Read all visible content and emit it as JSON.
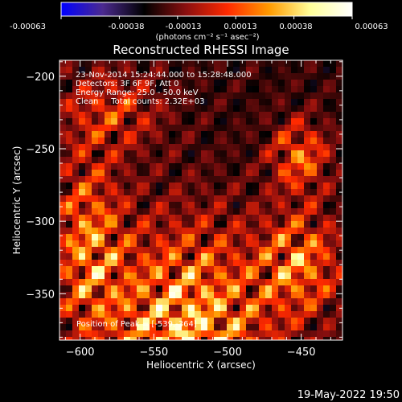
{
  "colorbar": {
    "ticks": [
      "-0.00063",
      "-0.00038",
      "-0.00013",
      "0.00013",
      "0.00038",
      "0.00063"
    ],
    "units_label": "(photons cm⁻² s⁻¹ asec⁻²)",
    "colormap": [
      "#0000ff",
      "#4b2a8f",
      "#000000",
      "#8a0f0f",
      "#ff2a00",
      "#ff9a00",
      "#ffff9a",
      "#ffffff"
    ]
  },
  "chart_data": {
    "type": "heatmap",
    "title": "Reconstructed RHESSI Image",
    "xlabel": "Heliocentric X (arcsec)",
    "ylabel": "Heliocentric Y (arcsec)",
    "xlim": [
      -614,
      -422
    ],
    "ylim": [
      -382,
      -189
    ],
    "x_ticks": [
      -600,
      -550,
      -500,
      -450
    ],
    "y_ticks": [
      -200,
      -250,
      -300,
      -350
    ],
    "x_tick_labels": [
      "−600",
      "−550",
      "−500",
      "−450"
    ],
    "y_tick_labels": [
      "−200",
      "−250",
      "−300",
      "−350"
    ],
    "info_lines": [
      "23-Nov-2014 15:24:44.000 to 15:28:48.000",
      "Detectors: 3F 6F 9F, Att 0",
      "Energy Range: 25.0 - 50.0 keV",
      "Clean     Total counts: 2.32E+03"
    ],
    "peak_label": "Position of Peak = [-539,-364]",
    "peak": [
      -539,
      -364
    ],
    "colormap_range": [
      -0.00063,
      0.00063
    ]
  },
  "footer": {
    "timestamp": "19-May-2022 19:50"
  }
}
